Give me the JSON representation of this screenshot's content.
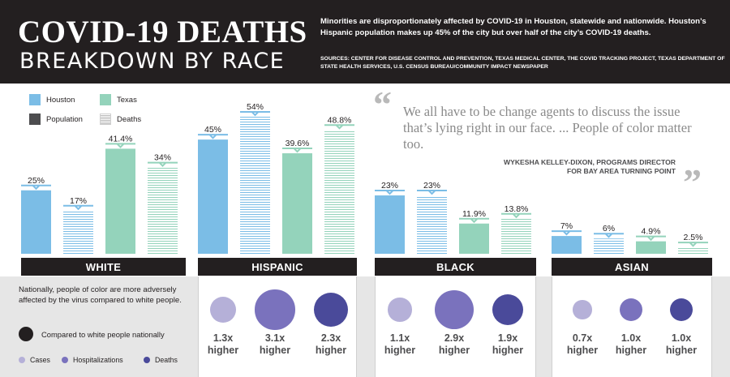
{
  "header": {
    "title_line1": "COVID-19 DEATHS",
    "title_line2": "BREAKDOWN BY RACE",
    "intro": "Minorities are disproportionately affected by COVID-19 in Houston, statewide and nationwide. Houston’s Hispanic population makes up 45% of the city but over half of the city’s COVID-19 deaths.",
    "sources": "SOURCES: CENTER FOR DISEASE CONTROL AND PREVENTION, TEXAS MEDICAL CENTER, THE COVID TRACKING PROJECT, TEXAS DEPARTMENT OF STATE HEALTH SERVICES, U.S. CENSUS BUREAU/COMMUNITY IMPACT NEWSPAPER"
  },
  "legend": {
    "houston": "Houston",
    "texas": "Texas",
    "population": "Population",
    "deaths": "Deaths"
  },
  "colors": {
    "houston": "#7bbde6",
    "texas": "#94d3bb",
    "header_bg": "#231f20",
    "cases": "#b5b0d8",
    "hospitalizations": "#7a72bd",
    "deaths_dot": "#4a4a9a"
  },
  "quote": {
    "text": "We all have to be change agents to discuss the issue that’s lying right in our face. ... People of color matter too.",
    "attribution_line1": "WYKESHA KELLEY-DIXON, PROGRAMS DIRECTOR",
    "attribution_line2": "FOR BAY AREA TURNING POINT"
  },
  "chart_data": {
    "type": "bar",
    "categories": [
      "WHITE",
      "HISPANIC",
      "BLACK",
      "ASIAN"
    ],
    "bar_order": [
      "Houston Population",
      "Houston Deaths",
      "Texas Population",
      "Texas Deaths"
    ],
    "series": [
      {
        "name": "Houston Population",
        "values": [
          25,
          45,
          23,
          7
        ],
        "labels": [
          "25%",
          "45%",
          "23%",
          "7%"
        ]
      },
      {
        "name": "Houston Deaths",
        "values": [
          17,
          54,
          23,
          6
        ],
        "labels": [
          "17%",
          "54%",
          "23%",
          "6%"
        ]
      },
      {
        "name": "Texas Population",
        "values": [
          41.4,
          39.6,
          11.9,
          4.9
        ],
        "labels": [
          "41.4%",
          "39.6%",
          "11.9%",
          "4.9%"
        ]
      },
      {
        "name": "Texas Deaths",
        "values": [
          34,
          48.8,
          13.8,
          2.5
        ],
        "labels": [
          "34%",
          "48.8%",
          "13.8%",
          "2.5%"
        ]
      }
    ],
    "title": "COVID-19 DEATHS BREAKDOWN BY RACE",
    "xlabel": "",
    "ylabel": "",
    "grid": false,
    "legend_position": "top-left"
  },
  "bottom": {
    "note": "Nationally, people of color are more adversely affected by the virus compared to white people.",
    "compared_label": "Compared to white people nationally",
    "cases_label": "Cases",
    "hosp_label": "Hospitalizations",
    "deaths_label": "Deaths",
    "groups": [
      {
        "name": "HISPANIC",
        "metrics": [
          {
            "metric": "Cases",
            "value": 1.3,
            "label": "1.3x",
            "sub": "higher"
          },
          {
            "metric": "Hospitalizations",
            "value": 3.1,
            "label": "3.1x",
            "sub": "higher"
          },
          {
            "metric": "Deaths",
            "value": 2.3,
            "label": "2.3x",
            "sub": "higher"
          }
        ]
      },
      {
        "name": "BLACK",
        "metrics": [
          {
            "metric": "Cases",
            "value": 1.1,
            "label": "1.1x",
            "sub": "higher"
          },
          {
            "metric": "Hospitalizations",
            "value": 2.9,
            "label": "2.9x",
            "sub": "higher"
          },
          {
            "metric": "Deaths",
            "value": 1.9,
            "label": "1.9x",
            "sub": "higher"
          }
        ]
      },
      {
        "name": "ASIAN",
        "metrics": [
          {
            "metric": "Cases",
            "value": 0.7,
            "label": "0.7x",
            "sub": "higher"
          },
          {
            "metric": "Hospitalizations",
            "value": 1.0,
            "label": "1.0x",
            "sub": "higher"
          },
          {
            "metric": "Deaths",
            "value": 1.0,
            "label": "1.0x",
            "sub": "higher"
          }
        ]
      }
    ]
  }
}
